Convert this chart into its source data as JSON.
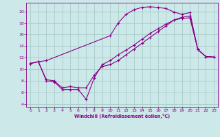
{
  "xlabel": "Windchill (Refroidissement éolien,°C)",
  "bg_color": "#cce8e8",
  "grid_color": "#aacccc",
  "line_color": "#880088",
  "xlim": [
    -0.5,
    23.5
  ],
  "ylim": [
    3.5,
    21.5
  ],
  "xticks": [
    0,
    1,
    2,
    3,
    4,
    5,
    6,
    7,
    8,
    9,
    10,
    11,
    12,
    13,
    14,
    15,
    16,
    17,
    18,
    19,
    20,
    21,
    22,
    23
  ],
  "yticks": [
    4,
    6,
    8,
    10,
    12,
    14,
    16,
    18,
    20
  ],
  "curve1_x": [
    0,
    1,
    2,
    10,
    11,
    12,
    13,
    14,
    15,
    16,
    17,
    18,
    19,
    20,
    21,
    22,
    23
  ],
  "curve1_y": [
    11,
    11.3,
    11.5,
    15.8,
    18.0,
    19.5,
    20.3,
    20.7,
    20.8,
    20.7,
    20.5,
    19.9,
    19.5,
    19.8,
    13.4,
    12.2,
    12.1
  ],
  "curve2_x": [
    0,
    1,
    2,
    3,
    4,
    5,
    6,
    7,
    8,
    9,
    10,
    11,
    12,
    13,
    14,
    15,
    16,
    17,
    18,
    19,
    20,
    21,
    22,
    23
  ],
  "curve2_y": [
    11,
    11.3,
    8.0,
    7.8,
    6.5,
    6.5,
    6.5,
    4.8,
    8.5,
    10.8,
    11.5,
    12.5,
    13.3,
    14.2,
    15.2,
    16.2,
    17.0,
    17.8,
    18.5,
    18.8,
    18.9,
    13.4,
    12.2,
    12.1
  ],
  "curve3_x": [
    0,
    1,
    2,
    3,
    4,
    5,
    6,
    7,
    8,
    9,
    10,
    11,
    12,
    13,
    14,
    15,
    16,
    17,
    18,
    19,
    20,
    21,
    22,
    23
  ],
  "curve3_y": [
    11,
    11.3,
    8.2,
    8.0,
    6.8,
    7.0,
    6.8,
    6.8,
    9.0,
    10.5,
    10.8,
    11.5,
    12.5,
    13.5,
    14.5,
    15.5,
    16.5,
    17.5,
    18.5,
    19.0,
    19.2,
    13.4,
    12.2,
    12.1
  ]
}
